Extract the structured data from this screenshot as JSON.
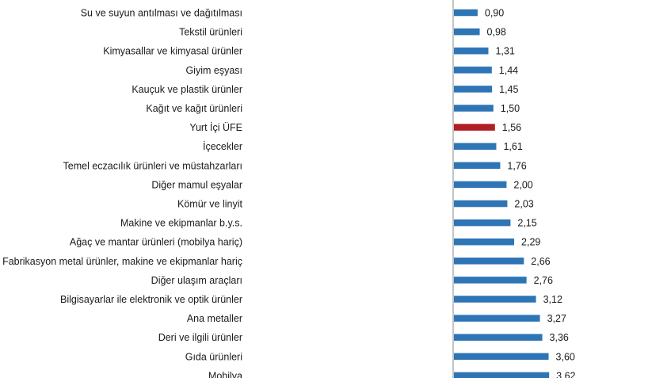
{
  "chart_data": {
    "type": "bar",
    "orientation": "horizontal",
    "categories": [
      "Su ve suyun antılması ve dağıtılması",
      "Tekstil ürünleri",
      "Kimyasallar ve kimyasal ürünler",
      "Giyim eşyası",
      "Kauçuk ve plastik ürünler",
      "Kağıt ve kağıt ürünleri",
      "Yurt İçi ÜFE",
      "İçecekler",
      "Temel eczacılık ürünleri ve müstahzarları",
      "Diğer mamul eşyalar",
      "Kömür ve linyit",
      "Makine ve ekipmanlar b.y.s.",
      "Ağaç ve mantar ürünleri (mobilya hariç)",
      "Fabrikasyon metal ürünler, makine ve ekipmanlar hariç",
      "Diğer ulaşım araçları",
      "Bilgisayarlar ile elektronik ve optik ürünler",
      "Ana metaller",
      "Deri ve ilgili ürünler",
      "Gıda ürünleri",
      "Mobilya"
    ],
    "values": [
      0.9,
      0.98,
      1.31,
      1.44,
      1.45,
      1.5,
      1.56,
      1.61,
      1.76,
      2.0,
      2.03,
      2.15,
      2.29,
      2.66,
      2.76,
      3.12,
      3.27,
      3.36,
      3.6,
      3.62
    ],
    "value_labels": [
      "0,90",
      "0,98",
      "1,31",
      "1,44",
      "1,45",
      "1,50",
      "1,56",
      "1,61",
      "1,76",
      "2,00",
      "2,03",
      "2,15",
      "2,29",
      "2,66",
      "2,76",
      "3,12",
      "3,27",
      "3,36",
      "3,60",
      "3,62"
    ],
    "highlight_index": 6,
    "colors": {
      "bar": "#2e75b6",
      "highlight": "#b01f24",
      "axis": "#8a8a8a"
    },
    "xlim": [
      0,
      4
    ],
    "title": "",
    "xlabel": "",
    "ylabel": ""
  }
}
